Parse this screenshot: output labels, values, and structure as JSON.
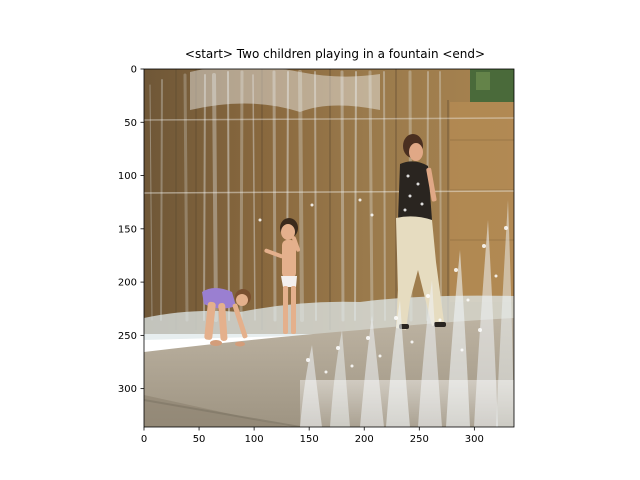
{
  "title": "<start> Two children playing in a fountain <end>",
  "x_axis": {
    "range": [
      0,
      336
    ],
    "ticks": [
      0,
      50,
      100,
      150,
      200,
      250,
      300
    ],
    "labels": [
      "0",
      "50",
      "100",
      "150",
      "200",
      "250",
      "300"
    ]
  },
  "y_axis": {
    "range": [
      0,
      336
    ],
    "inverted": true,
    "ticks": [
      0,
      50,
      100,
      150,
      200,
      250,
      300
    ],
    "labels": [
      "0",
      "50",
      "100",
      "150",
      "200",
      "250",
      "300"
    ]
  },
  "photo": {
    "subject": "fountain-scene",
    "colors": {
      "wall": "#8b6a3f",
      "wall_light": "#b99a6e",
      "water": "#dfe6ea",
      "pavement": "#b5ab9a",
      "purple_shirt": "#9a7fd1",
      "skin": "#e4b08c",
      "dark_top": "#2a2520",
      "light_pants": "#e6dcc0",
      "foliage": "#4a6a3a"
    }
  }
}
